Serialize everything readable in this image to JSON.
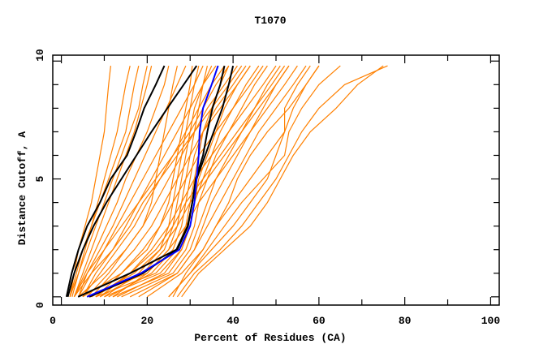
{
  "chart_data": {
    "type": "line",
    "title": "T1070",
    "xlabel": "Percent of Residues (CA)",
    "ylabel": "Distance Cutoff, A",
    "xlim": [
      -2,
      102
    ],
    "ylim": [
      -0.35,
      10.25
    ],
    "x_ticks": [
      0,
      20,
      40,
      60,
      80,
      100
    ],
    "y_ticks": [
      0,
      5,
      10
    ],
    "grid": false,
    "y_levels": [
      0,
      1,
      2,
      3,
      4,
      5,
      6,
      7,
      8,
      9,
      9.8
    ],
    "colors": {
      "models": "#ff8000",
      "highlight": "#000000",
      "reference": "#0000ff"
    },
    "model_series": [
      [
        2,
        3,
        4,
        5.5,
        7,
        8,
        9,
        10,
        10.5,
        11,
        11.5
      ],
      [
        2.5,
        4,
        5.5,
        7,
        8.5,
        10,
        11.5,
        13,
        14,
        15,
        16
      ],
      [
        3,
        5,
        7,
        9,
        11,
        13,
        15,
        17,
        18.5,
        20,
        21
      ],
      [
        3,
        5.5,
        8,
        10.5,
        13,
        15,
        17.5,
        20,
        22,
        24,
        25
      ],
      [
        4,
        6,
        9,
        12,
        14.5,
        17,
        19.5,
        22,
        24.5,
        27,
        29
      ],
      [
        4,
        7,
        10,
        13,
        16,
        19,
        22,
        25,
        28,
        31,
        33
      ],
      [
        5,
        8,
        12,
        15,
        18,
        21,
        24,
        27,
        30,
        33,
        36
      ],
      [
        5,
        9,
        13,
        17,
        20,
        23,
        26,
        29,
        32,
        35,
        38
      ],
      [
        6,
        11,
        15,
        19,
        22,
        25,
        28,
        31,
        34,
        38,
        41
      ],
      [
        7,
        12,
        17,
        21,
        24,
        27,
        30,
        33,
        37,
        41,
        44
      ],
      [
        8,
        14,
        19,
        23,
        26,
        29,
        32,
        36,
        40,
        44,
        47
      ],
      [
        9,
        16,
        21,
        25,
        28,
        31,
        35,
        39,
        43,
        47,
        50
      ],
      [
        10,
        18,
        23,
        27,
        30,
        34,
        38,
        42,
        46,
        50,
        53
      ],
      [
        12,
        20,
        25,
        29,
        32,
        36,
        40,
        44,
        48,
        52,
        55
      ],
      [
        6,
        20,
        25,
        27,
        28,
        29,
        30,
        31,
        32,
        33,
        34
      ],
      [
        8,
        22,
        27,
        29,
        30,
        31,
        32,
        33,
        35,
        37,
        39
      ],
      [
        10,
        23,
        28,
        30,
        31,
        32,
        34,
        36,
        38,
        41,
        44
      ],
      [
        12,
        25,
        29,
        31,
        32,
        34,
        36,
        39,
        42,
        45,
        48
      ],
      [
        14,
        26,
        30,
        32,
        34,
        36,
        39,
        42,
        45,
        48,
        51
      ],
      [
        16,
        27,
        31,
        33,
        35,
        38,
        41,
        44,
        47,
        50,
        53
      ],
      [
        5,
        14,
        20,
        23,
        25,
        26,
        27,
        28,
        29,
        30,
        30.5
      ],
      [
        7,
        17,
        23,
        25,
        26,
        27,
        28,
        29,
        30,
        31,
        32
      ],
      [
        9,
        19,
        24,
        26,
        27,
        28,
        29,
        30,
        31,
        33,
        35
      ],
      [
        4,
        10,
        15,
        19,
        21,
        22,
        23,
        24,
        25,
        26,
        27
      ],
      [
        11,
        21,
        26,
        28,
        29,
        30,
        31,
        33,
        36,
        40,
        43
      ],
      [
        13,
        24,
        28,
        30,
        31,
        33,
        35,
        37,
        40,
        43,
        46
      ],
      [
        26,
        29,
        33,
        36,
        40,
        44,
        48,
        52,
        52,
        55,
        58
      ],
      [
        25,
        30,
        35,
        40,
        44,
        48,
        50,
        52,
        54,
        57,
        60
      ],
      [
        27,
        31,
        37,
        42,
        46,
        50,
        53,
        56,
        60,
        66,
        76
      ],
      [
        28,
        32,
        38,
        44,
        48,
        51,
        54,
        58,
        64,
        69,
        75
      ],
      [
        25,
        30,
        34,
        38,
        42,
        47,
        52,
        53,
        56,
        60,
        65
      ],
      [
        20,
        28,
        33,
        36,
        39,
        41,
        44,
        48,
        53,
        57,
        60
      ],
      [
        18,
        27,
        31,
        34,
        37,
        40,
        43,
        46,
        50,
        54,
        57
      ],
      [
        8,
        16,
        22,
        26,
        29,
        33,
        37,
        41,
        45,
        49,
        52
      ],
      [
        3,
        6,
        10,
        14,
        18,
        22,
        26,
        30,
        33,
        36,
        39
      ],
      [
        3,
        7,
        12,
        16,
        19,
        23,
        27,
        31,
        35,
        39,
        42
      ],
      [
        2,
        4,
        6,
        8,
        10,
        12,
        14,
        16,
        18,
        19,
        20
      ],
      [
        2,
        3.5,
        5,
        7,
        9,
        11,
        13,
        15,
        16,
        17,
        18
      ]
    ],
    "highlight_series": [
      [
        1.2,
        2.4,
        4,
        6,
        9,
        11.5,
        15.3,
        17.4,
        19.3,
        22,
        24
      ],
      [
        1.5,
        3,
        5,
        7.5,
        10.5,
        14,
        17.5,
        21,
        24.7,
        28.5,
        31.5
      ],
      [
        3.9,
        16,
        26.8,
        29.4,
        30.5,
        31.3,
        33,
        34,
        35.2,
        37,
        38
      ],
      [
        6.5,
        19,
        27,
        29.5,
        30.5,
        31.5,
        33.5,
        35.5,
        37.5,
        39,
        40
      ]
    ],
    "reference_series": [
      6,
      18.5,
      27.5,
      30,
      31,
      31.5,
      32,
      32.2,
      33,
      35,
      36.5
    ]
  }
}
